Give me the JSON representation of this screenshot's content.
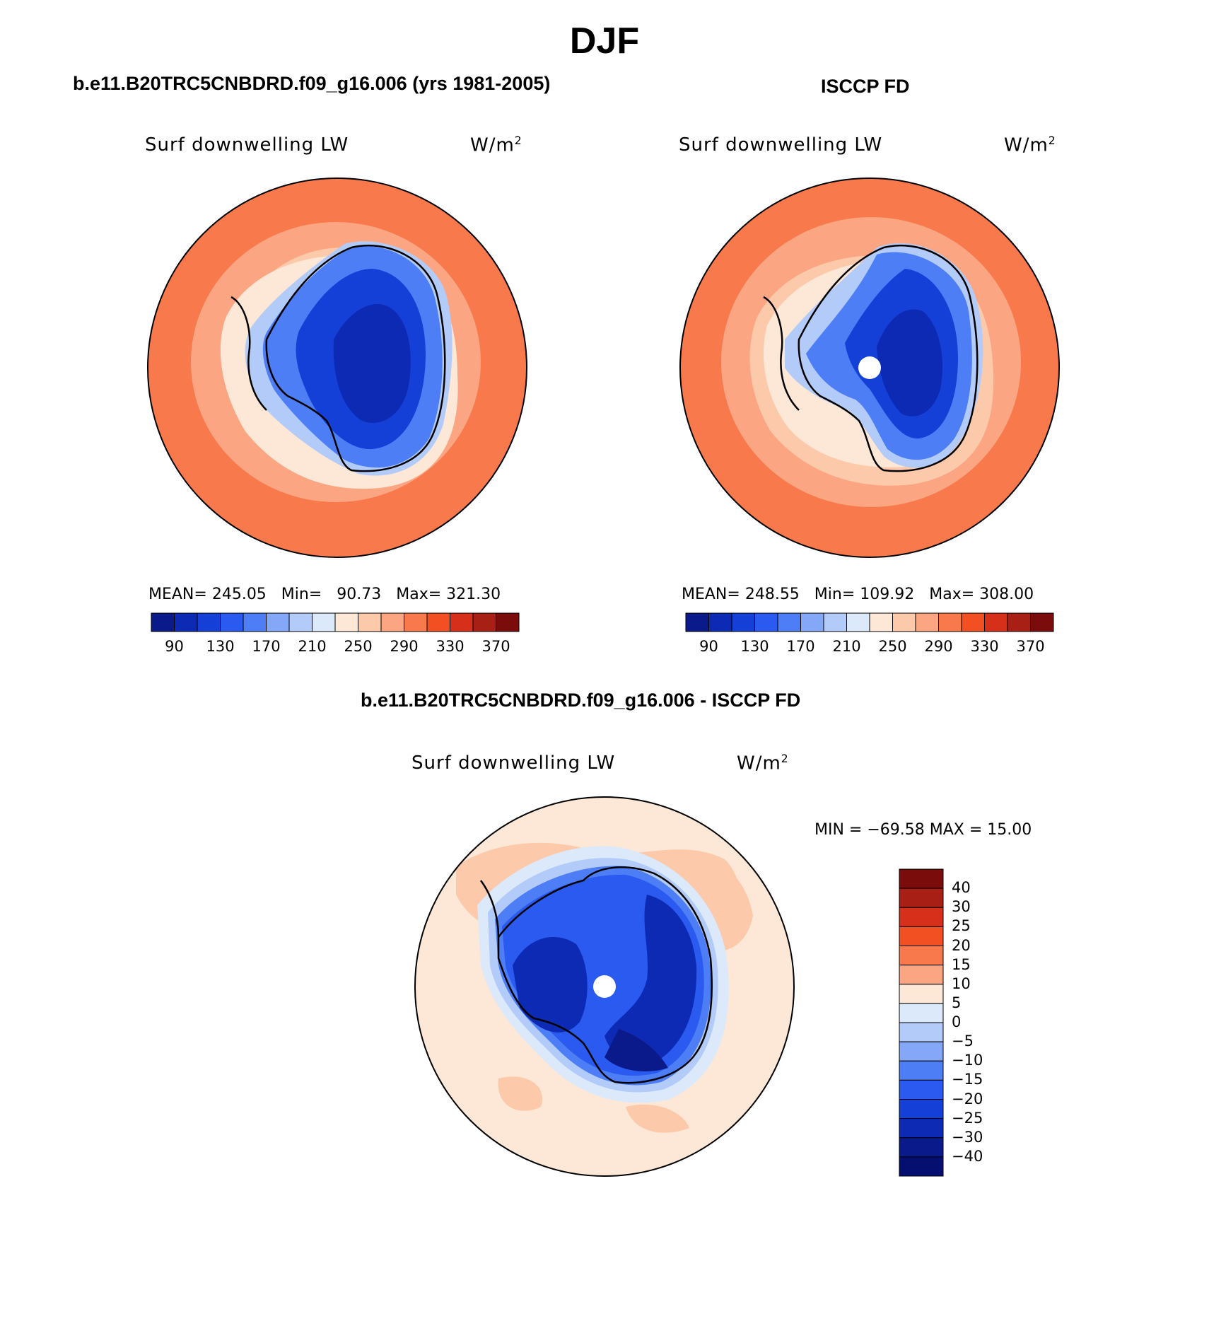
{
  "title": "DJF",
  "panels": [
    {
      "id": "model",
      "title": "b.e11.B20TRC5CNBDRD.f09_g16.006 (yrs 1981-2005)",
      "variable": "Surf downwelling LW",
      "units_base": "W/m",
      "units_exp": "2",
      "stats": {
        "mean_label": "MEAN=",
        "mean": "245.05",
        "min_label": "Min=",
        "min": "90.73",
        "max_label": "Max=",
        "max": "321.30"
      }
    },
    {
      "id": "obs",
      "title": "ISCCP FD",
      "variable": "Surf downwelling LW",
      "units_base": "W/m",
      "units_exp": "2",
      "stats": {
        "mean_label": "MEAN=",
        "mean": "248.55",
        "min_label": "Min=",
        "min": "109.92",
        "max_label": "Max=",
        "max": "308.00"
      }
    },
    {
      "id": "diff",
      "title": "b.e11.B20TRC5CNBDRD.f09_g16.006 - ISCCP FD",
      "variable": "Surf downwelling LW",
      "units_base": "W/m",
      "units_exp": "2",
      "stats_text": "MIN = −69.58 MAX =   15.00"
    }
  ],
  "colorbar_abs": {
    "colors": [
      "#0a1a8a",
      "#0c2ab4",
      "#1540d8",
      "#2a5aef",
      "#4d7ef5",
      "#84a8f7",
      "#b3cbf9",
      "#dbe9fb",
      "#fde7d6",
      "#fcc9aa",
      "#fba582",
      "#f87a4c",
      "#f24f22",
      "#d6301a",
      "#a82015",
      "#7a0c0c"
    ],
    "labels": [
      "90",
      "130",
      "170",
      "210",
      "250",
      "290",
      "330",
      "370"
    ]
  },
  "colorbar_diff": {
    "colors": [
      "#7a0c0c",
      "#a82015",
      "#d6301a",
      "#f24f22",
      "#f87a4c",
      "#fba582",
      "#fde7d6",
      "#dbe9fb",
      "#b3cbf9",
      "#84a8f7",
      "#4d7ef5",
      "#2a5aef",
      "#1540d8",
      "#0c2ab4",
      "#0a1a8a",
      "#050f70"
    ],
    "labels": [
      "40",
      "30",
      "25",
      "20",
      "15",
      "10",
      "5",
      "0",
      "−5",
      "−10",
      "−15",
      "−20",
      "−25",
      "−30",
      "−40"
    ]
  }
}
